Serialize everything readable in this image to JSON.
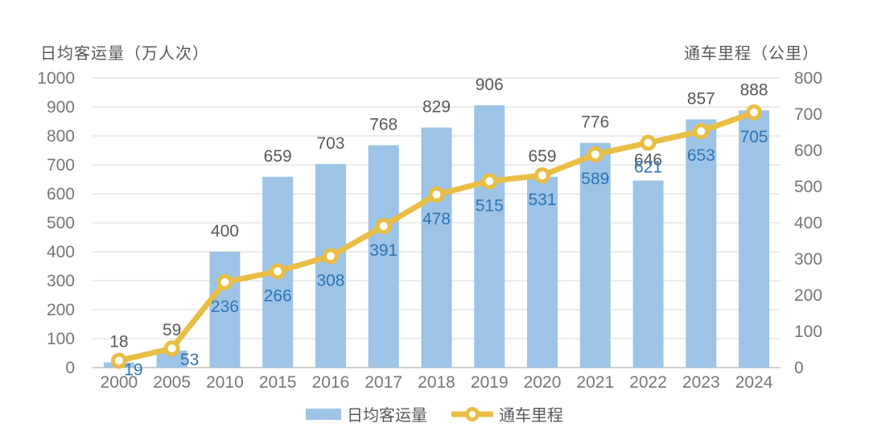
{
  "chart_data": {
    "type": "bar",
    "subtype": "combo-bar-line-dual-axis",
    "categories": [
      "2000",
      "2005",
      "2010",
      "2015",
      "2016",
      "2017",
      "2018",
      "2019",
      "2020",
      "2021",
      "2022",
      "2023",
      "2024"
    ],
    "series": [
      {
        "name": "日均客运量",
        "type": "bar",
        "axis": "left",
        "values": [
          18,
          59,
          400,
          659,
          703,
          768,
          829,
          906,
          659,
          776,
          646,
          857,
          888
        ],
        "color": "#9DC3E6",
        "label_color": "#595959"
      },
      {
        "name": "通车里程",
        "type": "line",
        "axis": "right",
        "values": [
          19,
          53,
          236,
          266,
          308,
          391,
          478,
          515,
          531,
          589,
          621,
          653,
          705
        ],
        "color": "#E8BE45",
        "marker": "circle-white-center",
        "label_color": "#2E75B6"
      }
    ],
    "left_axis": {
      "title": "日均客运量（万人次）",
      "min": 0,
      "max": 1000,
      "tick_step": 100,
      "ticks": [
        0,
        100,
        200,
        300,
        400,
        500,
        600,
        700,
        800,
        900,
        1000
      ]
    },
    "right_axis": {
      "title": "通车里程（公里）",
      "min": 0,
      "max": 800,
      "tick_step": 100,
      "ticks": [
        0,
        100,
        200,
        300,
        400,
        500,
        600,
        700,
        800
      ]
    },
    "grid": true,
    "legend_position": "bottom"
  },
  "legend": {
    "bar_label": "日均客运量",
    "line_label": "通车里程"
  },
  "colors": {
    "bar": "#9DC3E6",
    "line": "#E8BE45",
    "bar_value_label": "#595959",
    "line_value_label": "#2E75B6",
    "tick_label": "#767676",
    "gridline": "#D9D9D9",
    "axis_line": "#BFBFBF",
    "axis_title": "#595959",
    "background": "#FFFFFF"
  }
}
